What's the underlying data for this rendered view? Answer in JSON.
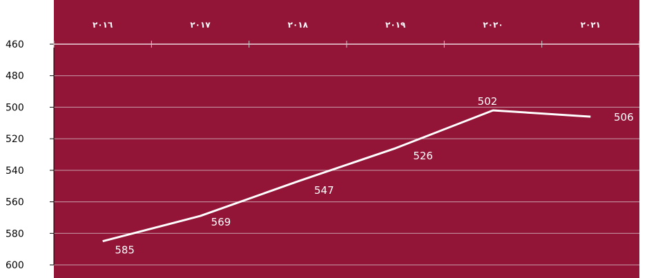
{
  "chart_data": {
    "type": "line",
    "categories": [
      "٢٠١٦",
      "٢٠١٧",
      "٢٠١٨",
      "٢٠١٩",
      "٢٠٢٠",
      "٢٠٢١"
    ],
    "series": [
      {
        "values": [
          585,
          569,
          547,
          526,
          502,
          506
        ]
      }
    ],
    "data_labels": [
      "585",
      "569",
      "547",
      "526",
      "502",
      "506"
    ],
    "y_ticks": [
      "460",
      "480",
      "500",
      "520",
      "540",
      "560",
      "580",
      "600"
    ],
    "ylim": [
      460,
      600
    ],
    "y_inverted": true,
    "x_axis_position": "top",
    "grid": true,
    "legend": "none",
    "colors": {
      "plot_background": "#921436",
      "line": "#ffffff",
      "grid": "#c9a1ad",
      "axis": "#ffffff",
      "y_tick_text": "#000000",
      "x_tick_text": "#ffffff",
      "data_label_text": "#ffffff"
    }
  }
}
